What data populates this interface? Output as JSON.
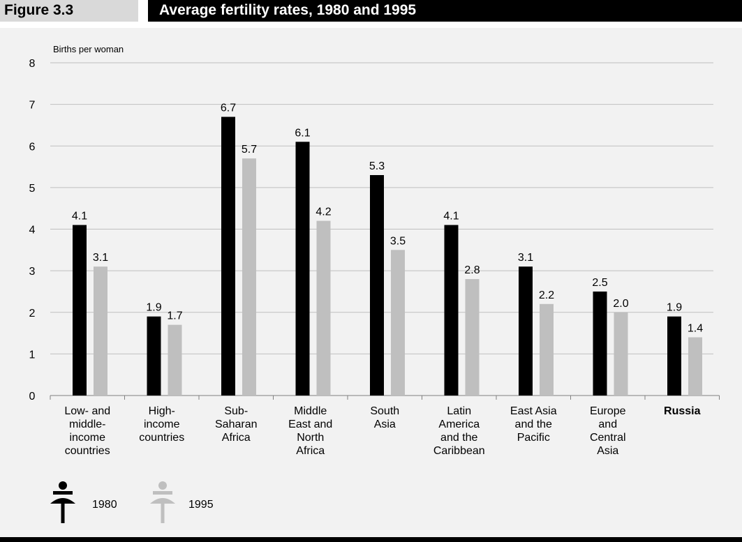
{
  "header": {
    "figure_label": "Figure 3.3",
    "title": "Average fertility rates, 1980 and 1995"
  },
  "colors": {
    "1980": "#000000",
    "1995": "#bfbfbf",
    "panel": "#f2f2f2",
    "grid": "#bfbfbf"
  },
  "legend": [
    {
      "label": "1980",
      "icon": "woman-figure-icon",
      "color": "#000000"
    },
    {
      "label": "1995",
      "icon": "woman-figure-icon",
      "color": "#bfbfbf"
    }
  ],
  "chart_data": {
    "type": "bar",
    "title": "",
    "ylabel": "Births per woman",
    "xlabel": "",
    "ylim": [
      0,
      8
    ],
    "yticks": [
      0,
      1,
      2,
      3,
      4,
      5,
      6,
      7,
      8
    ],
    "grid": true,
    "legend_position": "bottom-left",
    "categories": [
      "Low- and middle-income countries",
      "High-income countries",
      "Sub-Saharan Africa",
      "Middle East and North Africa",
      "South Asia",
      "Latin America and the Caribbean",
      "East Asia and the Pacific",
      "Europe and Central Asia",
      "Russia"
    ],
    "category_display": [
      "Low- and\nmiddle-\nincome\ncountries",
      "High-\nincome\ncountries",
      "Sub-\nSaharan\nAfrica",
      "Middle\nEast and\nNorth\nAfrica",
      "South\nAsia",
      "Latin\nAmerica\nand the\nCaribbean",
      "East Asia\nand the\nPacific",
      "Europe\nand\nCentral\nAsia",
      "Russia"
    ],
    "bold_categories": [
      "Russia"
    ],
    "series": [
      {
        "name": "1980",
        "values": [
          4.1,
          1.9,
          6.7,
          6.1,
          5.3,
          4.1,
          3.1,
          2.5,
          1.9
        ]
      },
      {
        "name": "1995",
        "values": [
          3.1,
          1.7,
          5.7,
          4.2,
          3.5,
          2.8,
          2.2,
          2.0,
          1.4
        ]
      }
    ]
  }
}
